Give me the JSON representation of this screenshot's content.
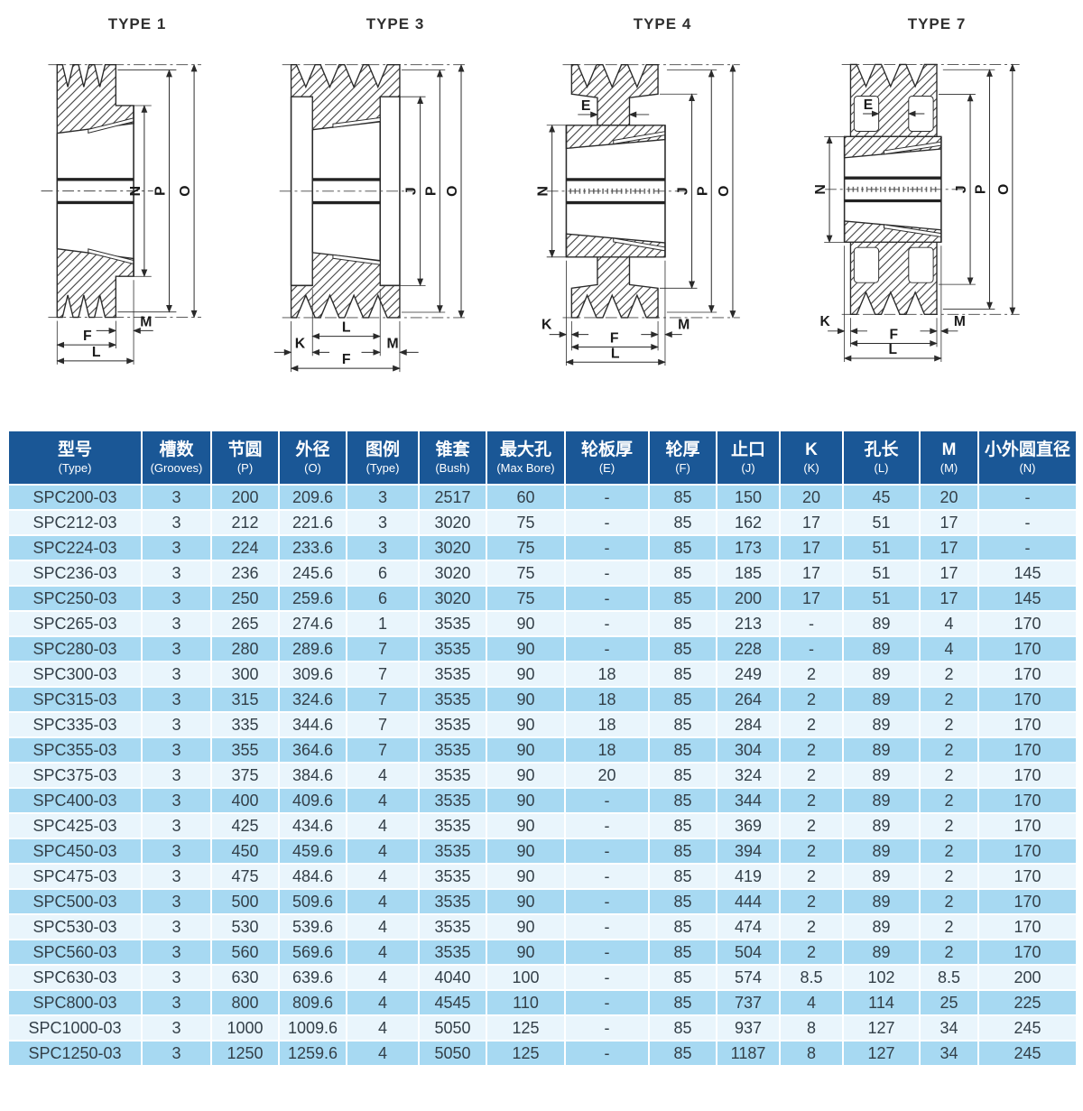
{
  "colors": {
    "header_bg": "#1a5796",
    "row_odd": "#a7d9f2",
    "row_even": "#e9f5fc",
    "header_text": "#ffffff",
    "cell_text": "#333f48",
    "drawing_line": "#2b2b2b"
  },
  "drawings": [
    {
      "title": "TYPE 1",
      "dims": {
        "n": "N",
        "p": "P",
        "o": "O",
        "m": "M",
        "f": "F",
        "l": "L"
      }
    },
    {
      "title": "TYPE 3",
      "dims": {
        "j": "J",
        "p": "P",
        "o": "O",
        "l": "L",
        "k": "K",
        "m": "M",
        "f": "F"
      }
    },
    {
      "title": "TYPE 4",
      "dims": {
        "n": "N",
        "e": "E",
        "j": "J",
        "p": "P",
        "o": "O",
        "k": "K",
        "m": "M",
        "f": "F",
        "l": "L"
      }
    },
    {
      "title": "TYPE 7",
      "dims": {
        "n": "N",
        "e": "E",
        "j": "J",
        "p": "P",
        "o": "O",
        "k": "K",
        "m": "M",
        "f": "F",
        "l": "L"
      }
    }
  ],
  "table": {
    "columns": [
      {
        "zh": "型号",
        "en": "(Type)"
      },
      {
        "zh": "槽数",
        "en": "(Grooves)"
      },
      {
        "zh": "节圆",
        "en": "(P)"
      },
      {
        "zh": "外径",
        "en": "(O)"
      },
      {
        "zh": "图例",
        "en": "(Type)"
      },
      {
        "zh": "锥套",
        "en": "(Bush)"
      },
      {
        "zh": "最大孔",
        "en": "(Max Bore)"
      },
      {
        "zh": "轮板厚",
        "en": "(E)"
      },
      {
        "zh": "轮厚",
        "en": "(F)"
      },
      {
        "zh": "止口",
        "en": "(J)"
      },
      {
        "zh": "K",
        "en": "(K)"
      },
      {
        "zh": "孔长",
        "en": "(L)"
      },
      {
        "zh": "M",
        "en": "(M)"
      },
      {
        "zh": "小外圆直径",
        "en": "(N)"
      }
    ],
    "rows": [
      [
        "SPC200-03",
        "3",
        "200",
        "209.6",
        "3",
        "2517",
        "60",
        "-",
        "85",
        "150",
        "20",
        "45",
        "20",
        "-"
      ],
      [
        "SPC212-03",
        "3",
        "212",
        "221.6",
        "3",
        "3020",
        "75",
        "-",
        "85",
        "162",
        "17",
        "51",
        "17",
        "-"
      ],
      [
        "SPC224-03",
        "3",
        "224",
        "233.6",
        "3",
        "3020",
        "75",
        "-",
        "85",
        "173",
        "17",
        "51",
        "17",
        "-"
      ],
      [
        "SPC236-03",
        "3",
        "236",
        "245.6",
        "6",
        "3020",
        "75",
        "-",
        "85",
        "185",
        "17",
        "51",
        "17",
        "145"
      ],
      [
        "SPC250-03",
        "3",
        "250",
        "259.6",
        "6",
        "3020",
        "75",
        "-",
        "85",
        "200",
        "17",
        "51",
        "17",
        "145"
      ],
      [
        "SPC265-03",
        "3",
        "265",
        "274.6",
        "1",
        "3535",
        "90",
        "-",
        "85",
        "213",
        "-",
        "89",
        "4",
        "170"
      ],
      [
        "SPC280-03",
        "3",
        "280",
        "289.6",
        "7",
        "3535",
        "90",
        "-",
        "85",
        "228",
        "-",
        "89",
        "4",
        "170"
      ],
      [
        "SPC300-03",
        "3",
        "300",
        "309.6",
        "7",
        "3535",
        "90",
        "18",
        "85",
        "249",
        "2",
        "89",
        "2",
        "170"
      ],
      [
        "SPC315-03",
        "3",
        "315",
        "324.6",
        "7",
        "3535",
        "90",
        "18",
        "85",
        "264",
        "2",
        "89",
        "2",
        "170"
      ],
      [
        "SPC335-03",
        "3",
        "335",
        "344.6",
        "7",
        "3535",
        "90",
        "18",
        "85",
        "284",
        "2",
        "89",
        "2",
        "170"
      ],
      [
        "SPC355-03",
        "3",
        "355",
        "364.6",
        "7",
        "3535",
        "90",
        "18",
        "85",
        "304",
        "2",
        "89",
        "2",
        "170"
      ],
      [
        "SPC375-03",
        "3",
        "375",
        "384.6",
        "4",
        "3535",
        "90",
        "20",
        "85",
        "324",
        "2",
        "89",
        "2",
        "170"
      ],
      [
        "SPC400-03",
        "3",
        "400",
        "409.6",
        "4",
        "3535",
        "90",
        "-",
        "85",
        "344",
        "2",
        "89",
        "2",
        "170"
      ],
      [
        "SPC425-03",
        "3",
        "425",
        "434.6",
        "4",
        "3535",
        "90",
        "-",
        "85",
        "369",
        "2",
        "89",
        "2",
        "170"
      ],
      [
        "SPC450-03",
        "3",
        "450",
        "459.6",
        "4",
        "3535",
        "90",
        "-",
        "85",
        "394",
        "2",
        "89",
        "2",
        "170"
      ],
      [
        "SPC475-03",
        "3",
        "475",
        "484.6",
        "4",
        "3535",
        "90",
        "-",
        "85",
        "419",
        "2",
        "89",
        "2",
        "170"
      ],
      [
        "SPC500-03",
        "3",
        "500",
        "509.6",
        "4",
        "3535",
        "90",
        "-",
        "85",
        "444",
        "2",
        "89",
        "2",
        "170"
      ],
      [
        "SPC530-03",
        "3",
        "530",
        "539.6",
        "4",
        "3535",
        "90",
        "-",
        "85",
        "474",
        "2",
        "89",
        "2",
        "170"
      ],
      [
        "SPC560-03",
        "3",
        "560",
        "569.6",
        "4",
        "3535",
        "90",
        "-",
        "85",
        "504",
        "2",
        "89",
        "2",
        "170"
      ],
      [
        "SPC630-03",
        "3",
        "630",
        "639.6",
        "4",
        "4040",
        "100",
        "-",
        "85",
        "574",
        "8.5",
        "102",
        "8.5",
        "200"
      ],
      [
        "SPC800-03",
        "3",
        "800",
        "809.6",
        "4",
        "4545",
        "110",
        "-",
        "85",
        "737",
        "4",
        "114",
        "25",
        "225"
      ],
      [
        "SPC1000-03",
        "3",
        "1000",
        "1009.6",
        "4",
        "5050",
        "125",
        "-",
        "85",
        "937",
        "8",
        "127",
        "34",
        "245"
      ],
      [
        "SPC1250-03",
        "3",
        "1250",
        "1259.6",
        "4",
        "5050",
        "125",
        "-",
        "85",
        "1187",
        "8",
        "127",
        "34",
        "245"
      ]
    ]
  }
}
